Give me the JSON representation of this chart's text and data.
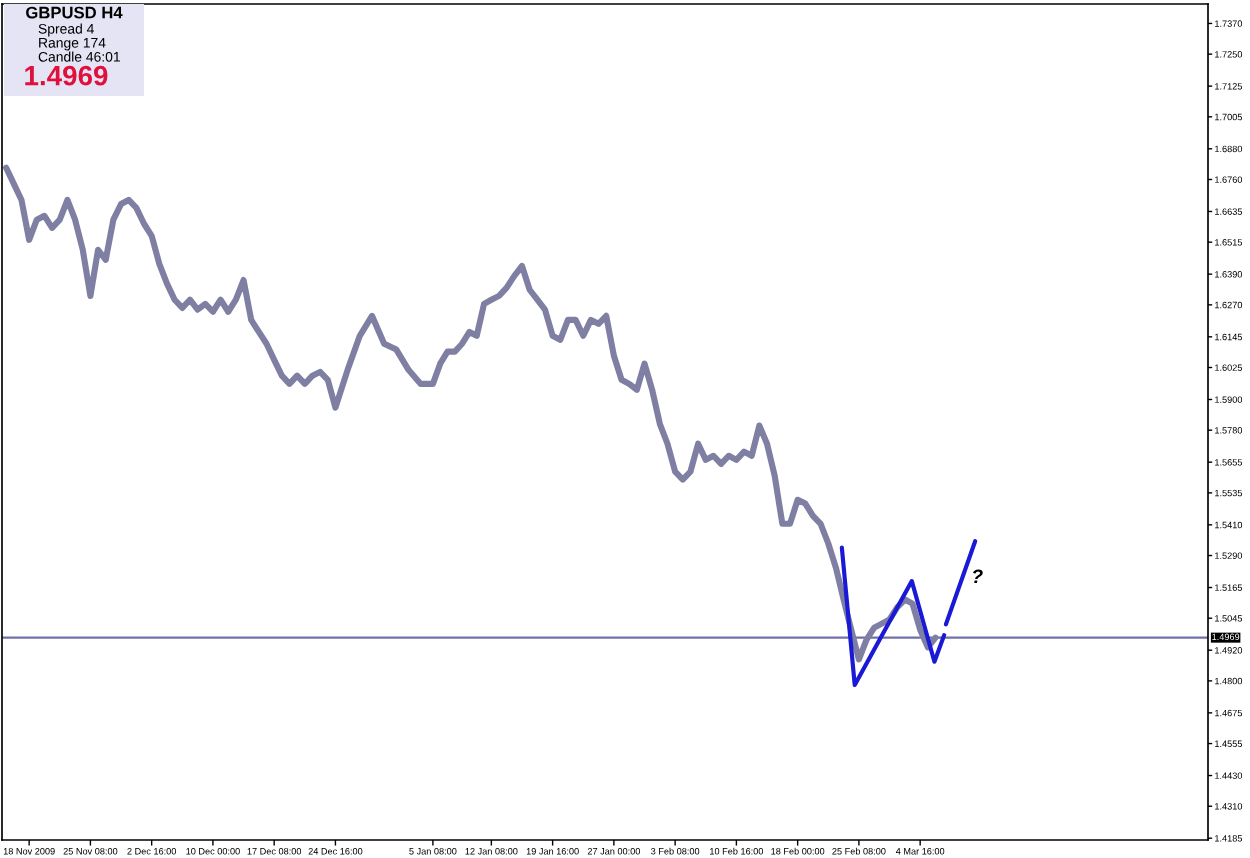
{
  "chart_data": {
    "type": "line",
    "title": "GBPUSD H4",
    "xlim": [
      "2009-11-14T18:00",
      "2010-04-08T03:00"
    ],
    "ylim": [
      1.4178,
      1.7446
    ],
    "xticks": [
      {
        "value": "2009-11-18T00:00",
        "label": "18 Nov 2009"
      },
      {
        "value": "2009-11-25T08:00",
        "label": "25 Nov 08:00"
      },
      {
        "value": "2009-12-02T16:00",
        "label": "2 Dec 16:00"
      },
      {
        "value": "2009-12-10T00:00",
        "label": "10 Dec 00:00"
      },
      {
        "value": "2009-12-17T08:00",
        "label": "17 Dec 08:00"
      },
      {
        "value": "2009-12-24T16:00",
        "label": "24 Dec 16:00"
      },
      {
        "value": "2010-01-05T08:00",
        "label": "5 Jan 08:00"
      },
      {
        "value": "2010-01-12T08:00",
        "label": "12 Jan 08:00"
      },
      {
        "value": "2010-01-19T16:00",
        "label": "19 Jan 16:00"
      },
      {
        "value": "2010-01-27T00:00",
        "label": "27 Jan 00:00"
      },
      {
        "value": "2010-02-03T08:00",
        "label": "3 Feb 08:00"
      },
      {
        "value": "2010-02-10T16:00",
        "label": "10 Feb 16:00"
      },
      {
        "value": "2010-02-18T00:00",
        "label": "18 Feb 00:00"
      },
      {
        "value": "2010-02-25T08:00",
        "label": "25 Feb 08:00"
      },
      {
        "value": "2010-03-04T16:00",
        "label": "4 Mar 16:00"
      }
    ],
    "yticks": [
      {
        "value": 1.737,
        "label": "1.7370"
      },
      {
        "value": 1.725,
        "label": "1.7250"
      },
      {
        "value": 1.7125,
        "label": "1.7125"
      },
      {
        "value": 1.7005,
        "label": "1.7005"
      },
      {
        "value": 1.688,
        "label": "1.6880"
      },
      {
        "value": 1.676,
        "label": "1.6760"
      },
      {
        "value": 1.6635,
        "label": "1.6635"
      },
      {
        "value": 1.6515,
        "label": "1.6515"
      },
      {
        "value": 1.639,
        "label": "1.6390"
      },
      {
        "value": 1.627,
        "label": "1.6270"
      },
      {
        "value": 1.6145,
        "label": "1.6145"
      },
      {
        "value": 1.6025,
        "label": "1.6025"
      },
      {
        "value": 1.59,
        "label": "1.5900"
      },
      {
        "value": 1.578,
        "label": "1.5780"
      },
      {
        "value": 1.5655,
        "label": "1.5655"
      },
      {
        "value": 1.5535,
        "label": "1.5535"
      },
      {
        "value": 1.541,
        "label": "1.5410"
      },
      {
        "value": 1.529,
        "label": "1.5290"
      },
      {
        "value": 1.5165,
        "label": "1.5165"
      },
      {
        "value": 1.5045,
        "label": "1.5045"
      },
      {
        "value": 1.492,
        "label": "1.4920"
      },
      {
        "value": 1.48,
        "label": "1.4800"
      },
      {
        "value": 1.4675,
        "label": "1.4675"
      },
      {
        "value": 1.4555,
        "label": "1.4555"
      },
      {
        "value": 1.443,
        "label": "1.4430"
      },
      {
        "value": 1.431,
        "label": "1.4310"
      },
      {
        "value": 1.4185,
        "label": "1.4185"
      }
    ],
    "series": [
      {
        "color": "#7f7fa3",
        "x": [
          "2009-11-15T06:00",
          "2009-11-16T04:00",
          "2009-11-17T02:00",
          "2009-11-18T00:00",
          "2009-11-18T22:00",
          "2009-11-19T20:00",
          "2009-11-20T18:00",
          "2009-11-21T16:00",
          "2009-11-22T14:00",
          "2009-11-23T12:00",
          "2009-11-24T10:00",
          "2009-11-25T08:00",
          "2009-11-26T06:00",
          "2009-11-27T04:00",
          "2009-11-28T02:00",
          "2009-11-29T00:00",
          "2009-11-29T22:00",
          "2009-11-30T20:00",
          "2009-12-01T18:00",
          "2009-12-02T16:00",
          "2009-12-03T14:00",
          "2009-12-04T12:00",
          "2009-12-05T10:00",
          "2009-12-06T08:00",
          "2009-12-07T06:00",
          "2009-12-08T04:00",
          "2009-12-09T02:00",
          "2009-12-10T00:00",
          "2009-12-10T22:00",
          "2009-12-11T20:00",
          "2009-12-12T18:00",
          "2009-12-13T16:00",
          "2009-12-14T14:00",
          "2009-12-15T12:00",
          "2009-12-16T10:00",
          "2009-12-17T08:00",
          "2009-12-18T06:00",
          "2009-12-19T04:00",
          "2009-12-20T02:00",
          "2009-12-21T00:00",
          "2009-12-21T22:00",
          "2009-12-22T20:00",
          "2009-12-23T18:00",
          "2009-12-24T16:00",
          "2009-12-26T03:00",
          "2009-12-27T14:00",
          "2009-12-29T01:00",
          "2009-12-30T12:00",
          "2009-12-31T23:00",
          "2010-01-02T10:00",
          "2010-01-03T21:00",
          "2010-01-05T08:00",
          "2010-01-06T05:00",
          "2010-01-07T02:00",
          "2010-01-07T23:00",
          "2010-01-08T20:00",
          "2010-01-09T17:00",
          "2010-01-10T14:00",
          "2010-01-11T11:00",
          "2010-01-12T08:00",
          "2010-01-13T06:00",
          "2010-01-14T04:00",
          "2010-01-15T02:00",
          "2010-01-16T00:00",
          "2010-01-16T22:00",
          "2010-01-17T20:00",
          "2010-01-18T18:00",
          "2010-01-19T16:00",
          "2010-01-20T14:00",
          "2010-01-21T12:00",
          "2010-01-22T10:00",
          "2010-01-23T08:00",
          "2010-01-24T06:00",
          "2010-01-25T04:00",
          "2010-01-26T02:00",
          "2010-01-27T00:00",
          "2010-01-27T22:00",
          "2010-01-28T20:00",
          "2010-01-29T18:00",
          "2010-01-30T16:00",
          "2010-01-31T14:00",
          "2010-02-01T12:00",
          "2010-02-02T10:00",
          "2010-02-03T08:00",
          "2010-02-04T06:00",
          "2010-02-05T04:00",
          "2010-02-06T02:00",
          "2010-02-07T00:00",
          "2010-02-07T22:00",
          "2010-02-08T20:00",
          "2010-02-09T18:00",
          "2010-02-10T16:00",
          "2010-02-11T14:00",
          "2010-02-12T12:00",
          "2010-02-13T10:00",
          "2010-02-14T08:00",
          "2010-02-15T06:00",
          "2010-02-16T04:00",
          "2010-02-17T02:00",
          "2010-02-18T00:00",
          "2010-02-18T22:00",
          "2010-02-19T20:00",
          "2010-02-20T18:00",
          "2010-02-21T16:00",
          "2010-02-22T14:00",
          "2010-02-23T12:00",
          "2010-02-24T10:00",
          "2010-02-25T08:00",
          "2010-02-26T06:00",
          "2010-02-27T04:00",
          "2010-02-28T02:00",
          "2010-03-01T00:00",
          "2010-03-01T22:00",
          "2010-03-02T20:00",
          "2010-03-03T18:00",
          "2010-03-04T16:00",
          "2010-03-05T14:00",
          "2010-03-06T12:00"
        ],
        "values": [
          1.6806,
          1.6743,
          1.668,
          1.6524,
          1.6603,
          1.6618,
          1.6571,
          1.6603,
          1.668,
          1.6603,
          1.6485,
          1.6305,
          1.6485,
          1.6446,
          1.6603,
          1.6664,
          1.668,
          1.6649,
          1.6587,
          1.654,
          1.643,
          1.6353,
          1.629,
          1.6258,
          1.629,
          1.6251,
          1.6274,
          1.6243,
          1.629,
          1.6243,
          1.629,
          1.6367,
          1.6211,
          1.6164,
          1.6118,
          1.6055,
          1.5993,
          1.5961,
          1.5993,
          1.5961,
          1.5993,
          1.6008,
          1.5977,
          1.5868,
          1.6016,
          1.6149,
          1.6227,
          1.6118,
          1.6095,
          1.6016,
          1.5961,
          1.5961,
          1.604,
          1.6087,
          1.6087,
          1.6118,
          1.6164,
          1.6149,
          1.6274,
          1.629,
          1.6305,
          1.6337,
          1.6383,
          1.6422,
          1.6329,
          1.629,
          1.6251,
          1.6149,
          1.6133,
          1.6211,
          1.6211,
          1.6149,
          1.6211,
          1.6196,
          1.6227,
          1.6071,
          1.5977,
          1.5961,
          1.5938,
          1.604,
          1.5938,
          1.5805,
          1.5727,
          1.5618,
          1.5587,
          1.5618,
          1.5727,
          1.5664,
          1.568,
          1.5648,
          1.568,
          1.5664,
          1.5696,
          1.568,
          1.5798,
          1.5727,
          1.5602,
          1.5414,
          1.5414,
          1.5508,
          1.5493,
          1.5445,
          1.5414,
          1.5337,
          1.5242,
          1.5118,
          1.5,
          1.4884,
          1.4961,
          1.5008,
          1.5024,
          1.504,
          1.5087,
          1.5118,
          1.5102,
          1.5,
          1.4931,
          1.4969
        ]
      },
      {
        "color": "#1a1ad6",
        "x": [
          "2010-02-23T07:00",
          "2010-02-24T20:00",
          "2010-03-03T16:00",
          "2010-03-06T09:00",
          "2010-03-07T13:00"
        ],
        "values": [
          1.5321,
          1.4784,
          1.519,
          1.4875,
          1.4979
        ]
      },
      {
        "color": "#1a1ad6",
        "x": [
          "2010-03-07T18:00",
          "2010-03-11T06:00"
        ],
        "values": [
          1.5021,
          1.5346
        ]
      }
    ],
    "ref_lines": [
      {
        "axis": "y",
        "value": 1.4969,
        "label": "1.4969",
        "color": "#7070a8"
      }
    ],
    "annotations": [
      "Spread 4",
      "Range 174",
      "Candle 46:01",
      "1.4969",
      "?"
    ]
  }
}
